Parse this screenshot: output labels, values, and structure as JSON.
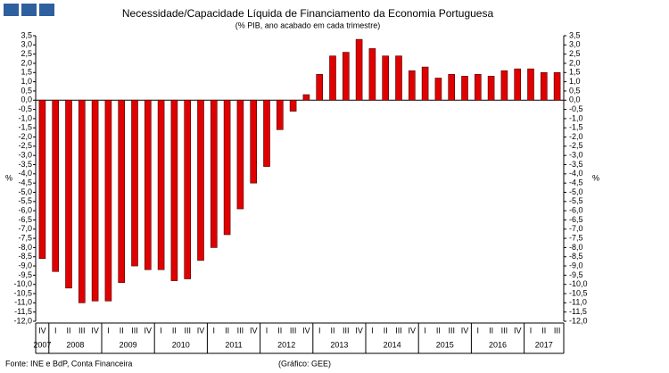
{
  "chart_data": {
    "type": "bar",
    "title": "Necessidade/Capacidade Líquida de Financiamento da Economia Portuguesa",
    "subtitle": "(% PIB, ano acabado em cada trimestre)",
    "y_label": "%",
    "y2_label": "%",
    "source": "Fonte: INE e BdP, Conta Financeira",
    "credit": "(Gráfico: GEE)",
    "categories": [
      "IV",
      "I",
      "II",
      "III",
      "IV",
      "I",
      "II",
      "III",
      "IV",
      "I",
      "II",
      "III",
      "IV",
      "I",
      "II",
      "III",
      "IV",
      "I",
      "II",
      "III",
      "IV",
      "I",
      "II",
      "III",
      "IV",
      "I",
      "II",
      "III",
      "IV",
      "I",
      "II",
      "III",
      "IV",
      "I",
      "II",
      "III",
      "IV",
      "I",
      "II",
      "III"
    ],
    "groups": [
      "2007",
      "2008",
      "2009",
      "2010",
      "2011",
      "2012",
      "2013",
      "2014",
      "2015",
      "2016",
      "2017"
    ],
    "values": [
      -8.6,
      -9.3,
      -10.2,
      -11.0,
      -10.9,
      -10.9,
      -9.9,
      -9.0,
      -9.2,
      -9.2,
      -9.8,
      -9.7,
      -8.7,
      -8.0,
      -7.3,
      -5.9,
      -4.5,
      -3.6,
      -1.6,
      -0.6,
      0.3,
      1.4,
      2.4,
      2.6,
      3.3,
      2.8,
      2.4,
      2.4,
      1.6,
      1.8,
      1.2,
      1.4,
      1.3,
      1.4,
      1.3,
      1.6,
      1.7,
      1.7,
      1.5,
      1.5
    ],
    "color": "#e00000",
    "ylim": [
      -12,
      3.5
    ],
    "yticks": [
      {
        "value": 3.5,
        "label": "3,5"
      },
      {
        "value": 3,
        "label": "3,0"
      },
      {
        "value": 2.5,
        "label": "2,5"
      },
      {
        "value": 2,
        "label": "2,0"
      },
      {
        "value": 1.5,
        "label": "1,5"
      },
      {
        "value": 1,
        "label": "1,0"
      },
      {
        "value": 0.5,
        "label": "0,5"
      },
      {
        "value": 0,
        "label": "0,0"
      },
      {
        "value": -0.5,
        "label": "-0,5"
      },
      {
        "value": -1,
        "label": "-1,0"
      },
      {
        "value": -1.5,
        "label": "-1,5"
      },
      {
        "value": -2,
        "label": "-2,0"
      },
      {
        "value": -2.5,
        "label": "-2,5"
      },
      {
        "value": -3,
        "label": "-3,0"
      },
      {
        "value": -3.5,
        "label": "-3,5"
      },
      {
        "value": -4,
        "label": "-4,0"
      },
      {
        "value": -4.5,
        "label": "-4,5"
      },
      {
        "value": -5,
        "label": "-5,0"
      },
      {
        "value": -5.5,
        "label": "-5,5"
      },
      {
        "value": -6,
        "label": "-6,0"
      },
      {
        "value": -6.5,
        "label": "-6,5"
      },
      {
        "value": -7,
        "label": "-7,0"
      },
      {
        "value": -7.5,
        "label": "-7,5"
      },
      {
        "value": -8,
        "label": "-8,0"
      },
      {
        "value": -8.5,
        "label": "-8,5"
      },
      {
        "value": -9,
        "label": "-9,0"
      },
      {
        "value": -9.5,
        "label": "-9,5"
      },
      {
        "value": -10,
        "label": "-10,0"
      },
      {
        "value": -10.5,
        "label": "-10,5"
      },
      {
        "value": -11,
        "label": "-11,0"
      },
      {
        "value": -11.5,
        "label": "-11,5"
      },
      {
        "value": -12,
        "label": "-12,0"
      }
    ],
    "right_axis": true,
    "grid": false
  }
}
